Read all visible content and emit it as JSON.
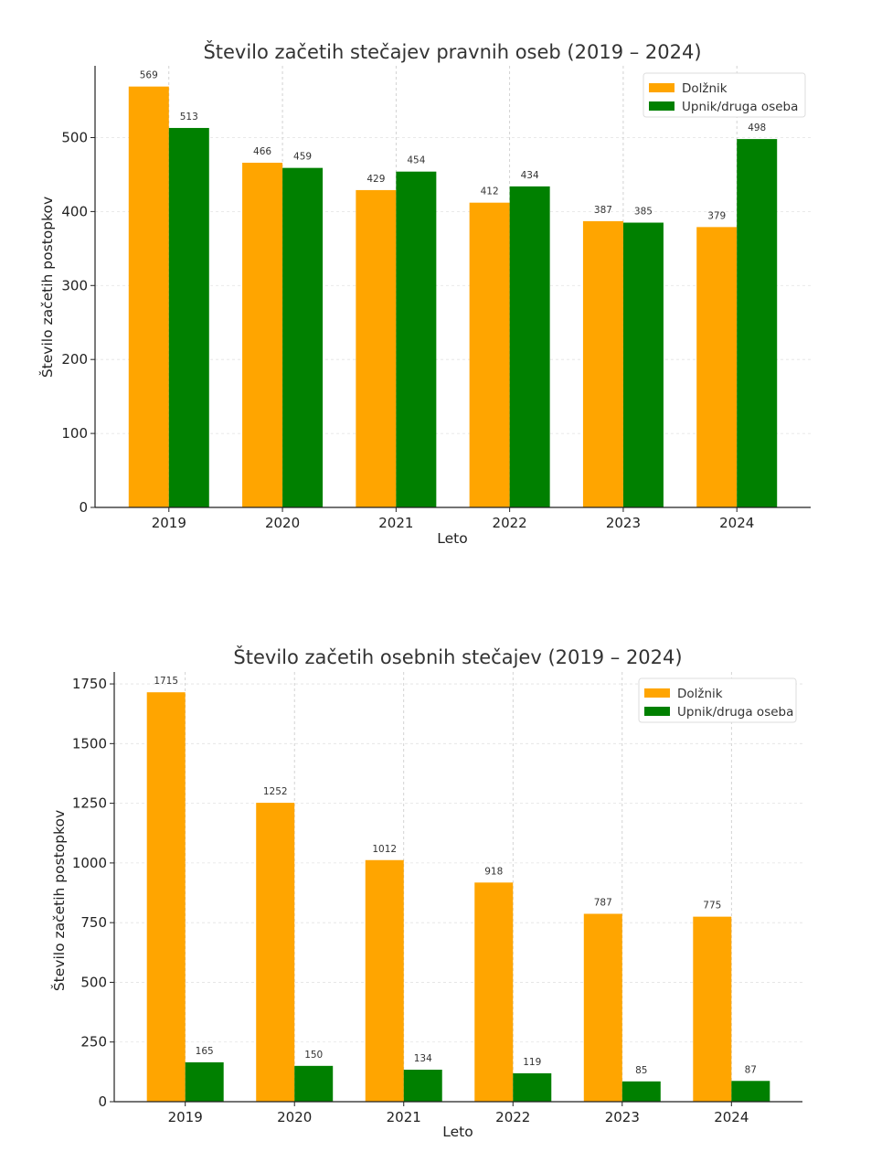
{
  "chart_data": [
    {
      "type": "bar",
      "title": "Število začetih stečajev pravnih oseb (2019 – 2024)",
      "xlabel": "Leto",
      "ylabel": "Število začetih postopkov",
      "categories": [
        "2019",
        "2020",
        "2021",
        "2022",
        "2023",
        "2024"
      ],
      "series": [
        {
          "name": "Dolžnik",
          "color": "#FFA500",
          "values": [
            569,
            466,
            429,
            412,
            387,
            379
          ]
        },
        {
          "name": "Upnik/druga oseba",
          "color": "#008000",
          "values": [
            513,
            459,
            454,
            434,
            385,
            498
          ]
        }
      ],
      "ylim": [
        0,
        597
      ],
      "yticks": [
        0,
        100,
        200,
        300,
        400,
        500
      ],
      "grid": true,
      "legend": "top-right"
    },
    {
      "type": "bar",
      "title": "Število začetih osebnih stečajev (2019 – 2024)",
      "xlabel": "Leto",
      "ylabel": "Število začetih postopkov",
      "categories": [
        "2019",
        "2020",
        "2021",
        "2022",
        "2023",
        "2024"
      ],
      "series": [
        {
          "name": "Dolžnik",
          "color": "#FFA500",
          "values": [
            1715,
            1252,
            1012,
            918,
            787,
            775
          ]
        },
        {
          "name": "Upnik/druga oseba",
          "color": "#008000",
          "values": [
            165,
            150,
            134,
            119,
            85,
            87
          ]
        }
      ],
      "ylim": [
        0,
        1800
      ],
      "yticks": [
        0,
        250,
        500,
        750,
        1000,
        1250,
        1500,
        1750
      ],
      "grid": true,
      "legend": "top-right"
    }
  ]
}
